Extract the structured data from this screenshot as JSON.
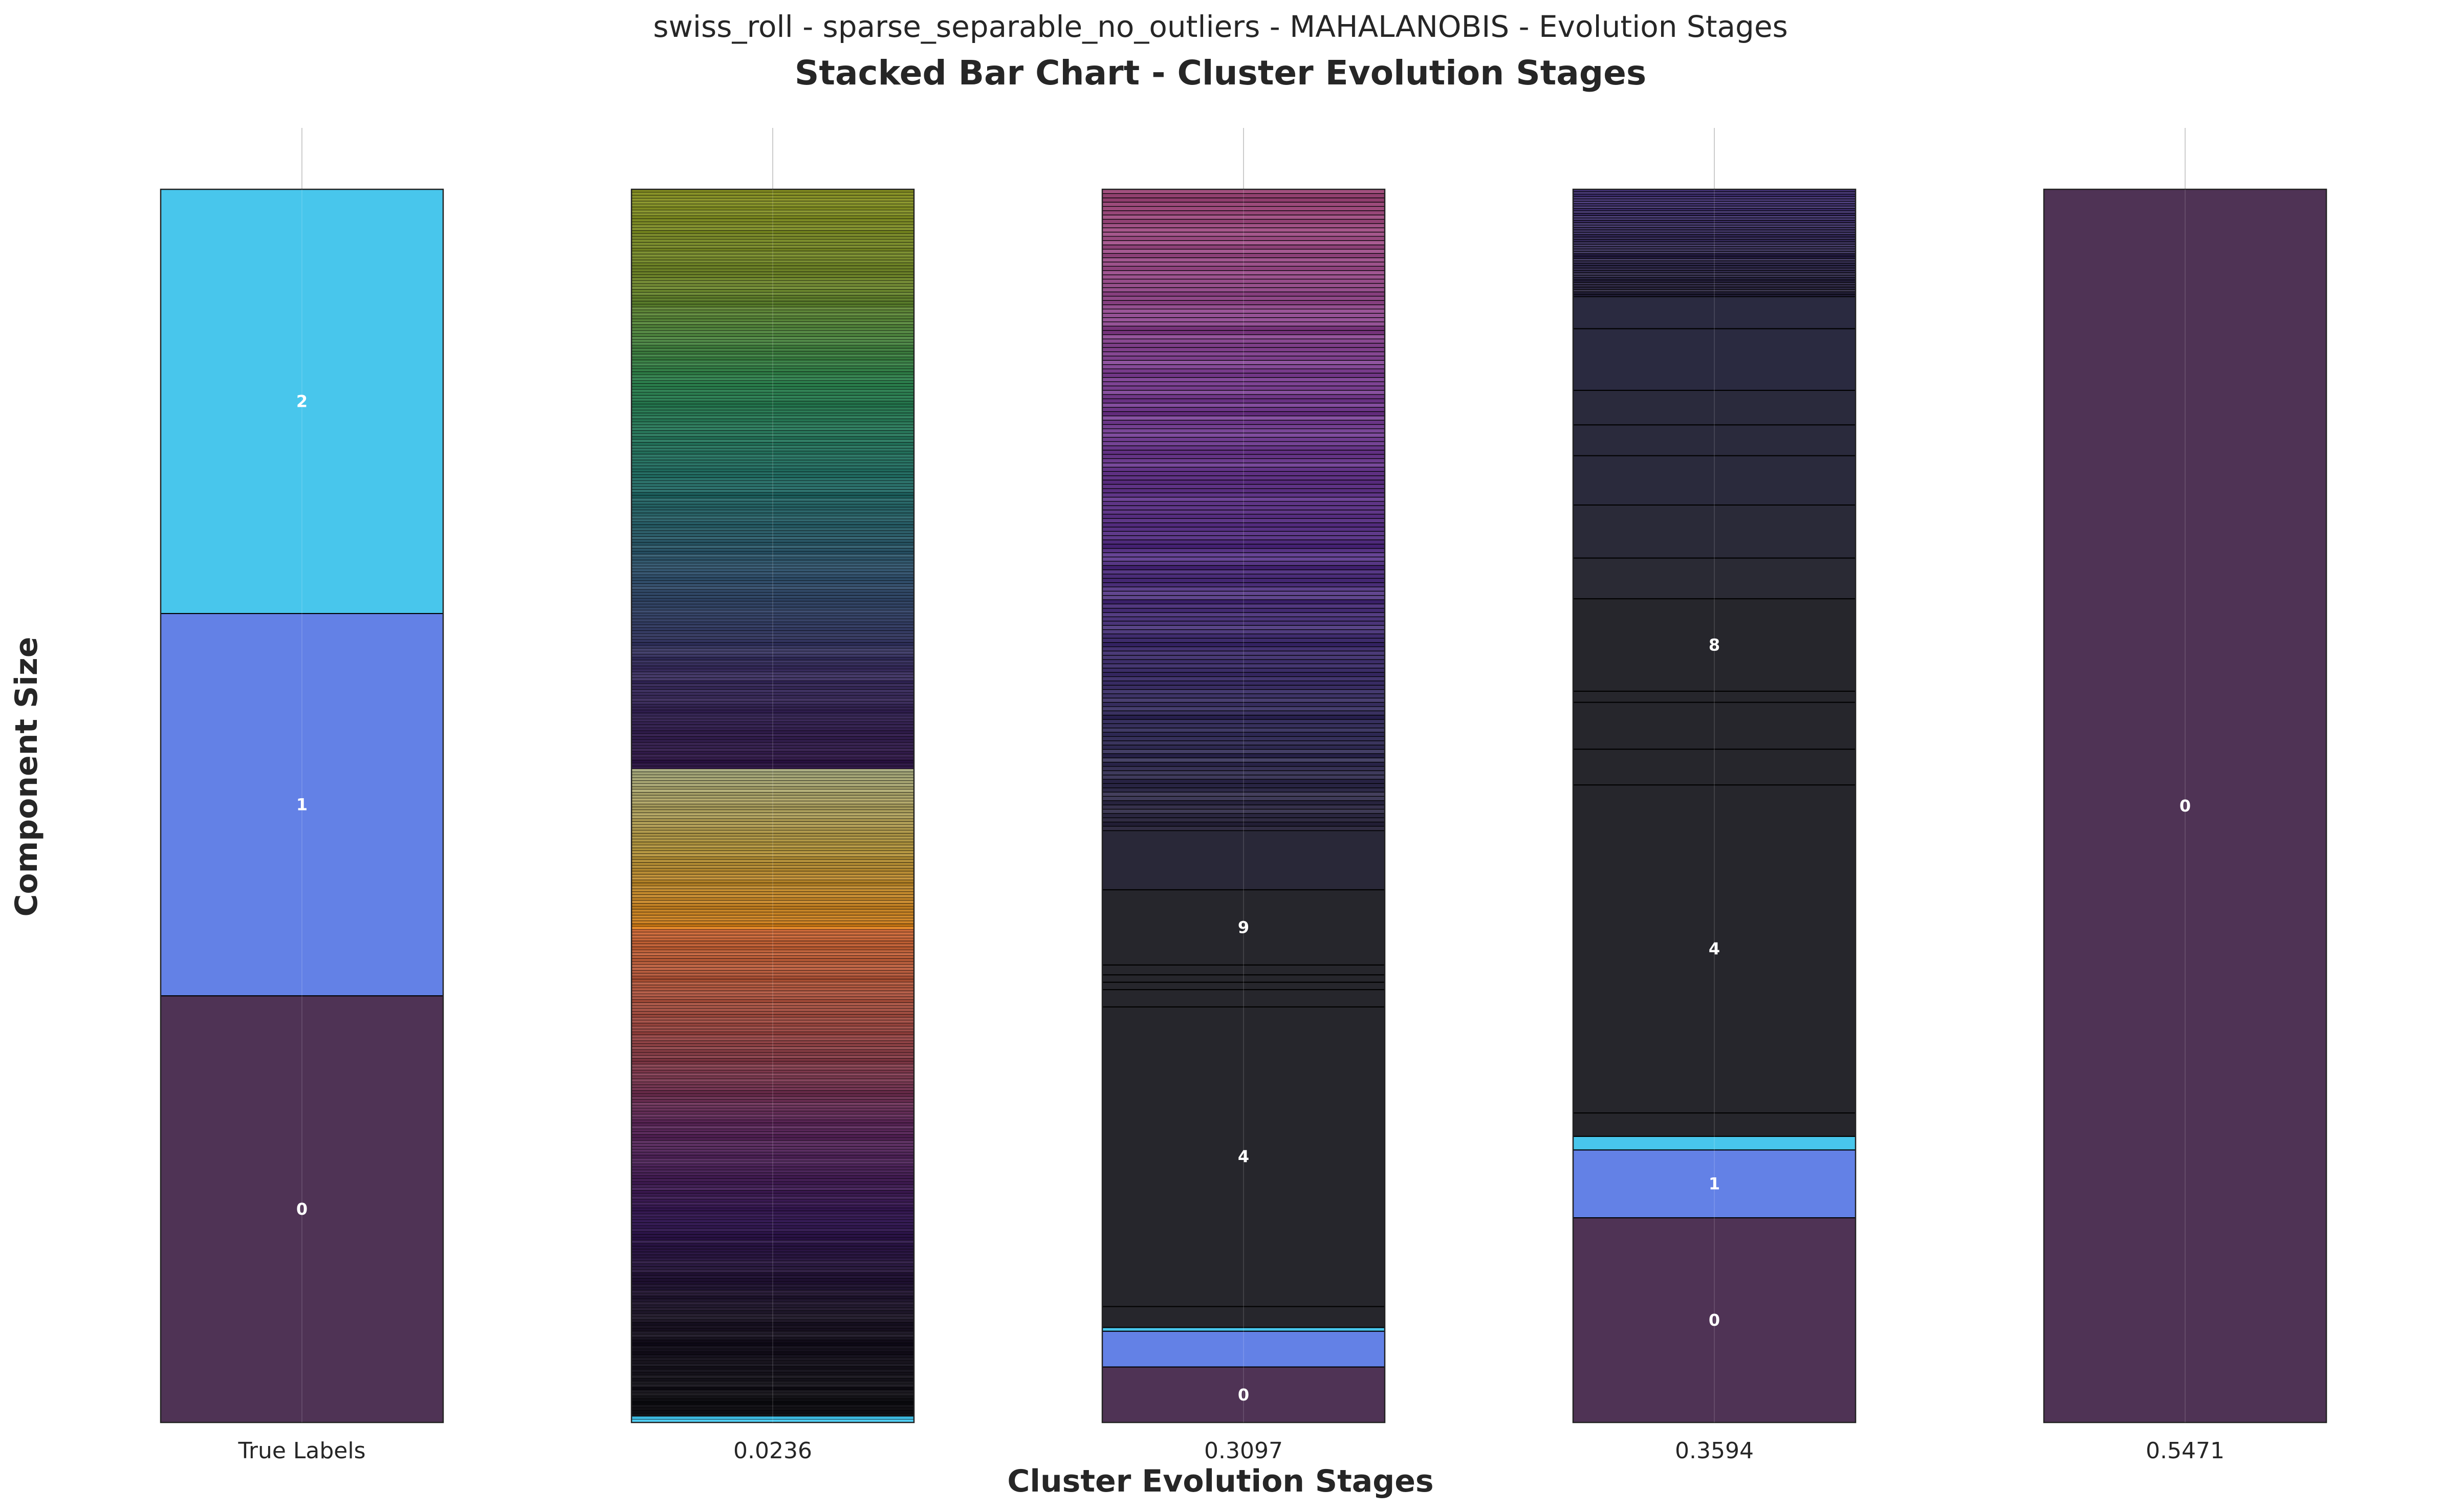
{
  "chart_data": {
    "type": "bar",
    "stacked": true,
    "suptitle": "swiss_roll - sparse_separable_no_outliers - MAHALANOBIS - Evolution Stages",
    "title": "Stacked Bar Chart - Cluster Evolution Stages",
    "xlabel": "Cluster Evolution Stages",
    "ylabel": "Component Size",
    "categories": [
      "True Labels",
      "0.0236",
      "0.3097",
      "0.3594",
      "0.5471"
    ],
    "ylim": [
      0,
      1000
    ],
    "grid": true,
    "legend": "none",
    "stages": [
      {
        "label": "True Labels",
        "segments": [
          {
            "value": 346,
            "color": "#4f3355",
            "label": "0"
          },
          {
            "value": 310,
            "color": "#6381e6",
            "label": "1"
          },
          {
            "value": 344,
            "color": "#48c6ec",
            "label": "2"
          }
        ]
      },
      {
        "label": "0.0236",
        "gradient_stack": true,
        "segment_count": 420,
        "bands": [
          {
            "value": 5,
            "colors": [
              "#48c6ec",
              "#48c6ec"
            ]
          },
          {
            "value": 395,
            "colors": [
              "#111114",
              "#1d1627",
              "#391f58",
              "#5e2c5c",
              "#9a4a44",
              "#c86838"
            ]
          },
          {
            "value": 2,
            "colors": [
              "#f2902a",
              "#f2902a"
            ]
          },
          {
            "value": 128,
            "colors": [
              "#c87c1e",
              "#b09440",
              "#a4a77c"
            ]
          },
          {
            "value": 470,
            "colors": [
              "#321a48",
              "#3a2f5e",
              "#34536e",
              "#226a62",
              "#2d7f4e",
              "#6e8630",
              "#858e24"
            ]
          }
        ]
      },
      {
        "label": "0.3097",
        "segments": [
          {
            "value": 45,
            "color": "#4f3355",
            "label": "0"
          },
          {
            "value": 29,
            "color": "#6381e6",
            "label": ""
          },
          {
            "value": 3,
            "color": "#48c6ec",
            "label": ""
          },
          {
            "value": 17,
            "color": "#26262c",
            "label": ""
          },
          {
            "value": 243,
            "color": "#26262c",
            "label": "4"
          },
          {
            "value": 14,
            "color": "#26262c",
            "label": ""
          },
          {
            "value": 6,
            "color": "#26262c",
            "label": ""
          },
          {
            "value": 6,
            "color": "#26262c",
            "label": ""
          },
          {
            "value": 8,
            "color": "#26262c",
            "label": ""
          },
          {
            "value": 61,
            "color": "#26262c",
            "label": "9"
          },
          {
            "value": 48,
            "color": "#292838",
            "label": ""
          }
        ],
        "stripe_stack": {
          "value": 520,
          "count": 150,
          "colors": [
            "#2e2a40",
            "#35305a",
            "#433271",
            "#553383",
            "#693a8c",
            "#7c4190",
            "#8f4682",
            "#9c4a78"
          ]
        }
      },
      {
        "label": "0.3594",
        "segments": [
          {
            "value": 166,
            "color": "#4f3355",
            "label": "0"
          },
          {
            "value": 55,
            "color": "#6381e6",
            "label": "1"
          },
          {
            "value": 11,
            "color": "#48c6ec",
            "label": ""
          },
          {
            "value": 19,
            "color": "#26262c",
            "label": ""
          },
          {
            "value": 266,
            "color": "#26262c",
            "label": "4"
          },
          {
            "value": 29,
            "color": "#26262c",
            "label": ""
          },
          {
            "value": 38,
            "color": "#26262c",
            "label": ""
          },
          {
            "value": 9,
            "color": "#26262c",
            "label": ""
          },
          {
            "value": 75,
            "color": "#26262c",
            "label": "8"
          },
          {
            "value": 33,
            "color": "#2a2a34",
            "label": ""
          },
          {
            "value": 43,
            "color": "#2a2a38",
            "label": ""
          },
          {
            "value": 40,
            "color": "#2a2a3c",
            "label": ""
          },
          {
            "value": 25,
            "color": "#2a2a3c",
            "label": ""
          },
          {
            "value": 28,
            "color": "#2a2a3c",
            "label": ""
          },
          {
            "value": 50,
            "color": "#2a2a40",
            "label": ""
          },
          {
            "value": 26,
            "color": "#2a2a40",
            "label": ""
          }
        ],
        "stripe_stack": {
          "value": 87,
          "count": 45,
          "colors": [
            "#2c2840",
            "#332c52",
            "#3b2f63",
            "#433275"
          ]
        }
      },
      {
        "label": "0.5471",
        "segments": [
          {
            "value": 1000,
            "color": "#4f3355",
            "label": "0"
          }
        ]
      }
    ]
  }
}
